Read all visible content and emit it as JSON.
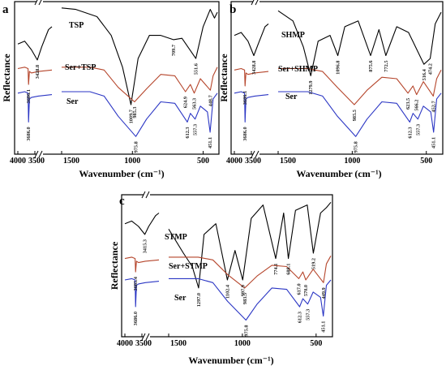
{
  "figure": {
    "panels": [
      "a",
      "b",
      "c"
    ],
    "y_label": "Reflectance",
    "x_label": "Wavenumber (cm⁻¹)",
    "break_mark": "//"
  },
  "colors": {
    "top": "#000000",
    "mid": "#b5452b",
    "ser": "#2b36c4"
  },
  "chart_data": [
    {
      "panel": "a",
      "type": "line",
      "xlabel": "Wavenumber (cm⁻¹)",
      "ylabel": "Reflectance",
      "x_axis_break": [
        1500,
        3500
      ],
      "x_ticks": [
        "4000",
        "3500",
        "1500",
        "1000",
        "500"
      ],
      "series": [
        {
          "name": "TSP",
          "color": "#000000",
          "x": [
            4000,
            3800,
            3600,
            3429,
            3300,
            3100,
            3000,
            1500,
            1400,
            1250,
            1150,
            1070,
            1010,
            960,
            880,
            800,
            710,
            650,
            552,
            500,
            450,
            420,
            400
          ],
          "y": [
            0.74,
            0.76,
            0.7,
            0.63,
            0.72,
            0.84,
            0.86,
            0.99,
            0.98,
            0.93,
            0.8,
            0.58,
            0.32,
            0.64,
            0.8,
            0.8,
            0.77,
            0.78,
            0.64,
            0.86,
            0.98,
            0.92,
            0.96
          ]
        },
        {
          "name": "Ser+TSP",
          "color": "#b5452b",
          "x": [
            4000,
            3800,
            3700,
            3686,
            3660,
            3600,
            3400,
            3000,
            1500,
            1300,
            1200,
            1100,
            985,
            900,
            800,
            700,
            625,
            590,
            563,
            520,
            449,
            430,
            400
          ],
          "y": [
            0.57,
            0.58,
            0.57,
            0.46,
            0.55,
            0.54,
            0.55,
            0.56,
            0.58,
            0.58,
            0.56,
            0.44,
            0.34,
            0.43,
            0.53,
            0.52,
            0.41,
            0.46,
            0.4,
            0.5,
            0.42,
            0.52,
            0.58
          ]
        },
        {
          "name": "Ser",
          "color": "#2b36c4",
          "x": [
            4000,
            3800,
            3700,
            3686,
            3660,
            3600,
            3400,
            3000,
            1500,
            1300,
            1200,
            1100,
            976,
            900,
            800,
            700,
            612,
            590,
            557,
            520,
            470,
            451,
            430,
            400
          ],
          "y": [
            0.4,
            0.41,
            0.4,
            0.2,
            0.36,
            0.37,
            0.38,
            0.39,
            0.41,
            0.41,
            0.38,
            0.24,
            0.1,
            0.22,
            0.34,
            0.33,
            0.2,
            0.26,
            0.22,
            0.31,
            0.27,
            0.13,
            0.36,
            0.4
          ]
        }
      ],
      "annotations": [
        "3428.8",
        "1009.7",
        "709.7",
        "551.6",
        "3686.1",
        "985.3",
        "624.9",
        "563.3",
        "448.7",
        "3686.0",
        "975.8",
        "612.3",
        "557.3",
        "451.1"
      ]
    },
    {
      "panel": "b",
      "type": "line",
      "xlabel": "Wavenumber (cm⁻¹)",
      "ylabel": "Reflectance",
      "x_axis_break": [
        1500,
        3500
      ],
      "x_ticks": [
        "4000",
        "3500",
        "1500",
        "1000",
        "500"
      ],
      "series": [
        {
          "name": "SHMP",
          "color": "#000000",
          "x": [
            4000,
            3800,
            3600,
            3429,
            3300,
            3100,
            3000,
            1500,
            1400,
            1330,
            1280,
            1230,
            1150,
            1097,
            1050,
            960,
            876,
            820,
            773,
            700,
            620,
            516,
            474,
            440,
            400
          ],
          "y": [
            0.8,
            0.82,
            0.76,
            0.66,
            0.74,
            0.86,
            0.88,
            0.97,
            0.9,
            0.72,
            0.52,
            0.76,
            0.8,
            0.66,
            0.86,
            0.9,
            0.66,
            0.84,
            0.66,
            0.86,
            0.82,
            0.6,
            0.64,
            0.88,
            0.96
          ]
        },
        {
          "name": "Ser+SHMP",
          "color": "#b5452b",
          "x": [
            4000,
            3800,
            3700,
            3686,
            3660,
            3600,
            3400,
            3000,
            1500,
            1300,
            1200,
            1100,
            986,
            900,
            800,
            700,
            624,
            590,
            566,
            520,
            453,
            430,
            400
          ],
          "y": [
            0.56,
            0.57,
            0.56,
            0.45,
            0.54,
            0.53,
            0.54,
            0.55,
            0.57,
            0.57,
            0.55,
            0.44,
            0.32,
            0.42,
            0.51,
            0.5,
            0.4,
            0.45,
            0.39,
            0.48,
            0.38,
            0.5,
            0.56
          ]
        },
        {
          "name": "Ser",
          "color": "#2b36c4",
          "x": [
            4000,
            3800,
            3700,
            3686,
            3660,
            3600,
            3400,
            3000,
            1500,
            1300,
            1200,
            1100,
            976,
            900,
            800,
            700,
            612,
            590,
            557,
            520,
            470,
            451,
            430,
            400
          ],
          "y": [
            0.4,
            0.41,
            0.4,
            0.2,
            0.36,
            0.37,
            0.38,
            0.39,
            0.41,
            0.41,
            0.38,
            0.24,
            0.1,
            0.22,
            0.34,
            0.33,
            0.2,
            0.26,
            0.22,
            0.31,
            0.27,
            0.13,
            0.36,
            0.4
          ]
        }
      ],
      "annotations": [
        "3428.8",
        "1279.9",
        "1096.8",
        "875.6",
        "772.5",
        "516.4",
        "474.2",
        "3686.1",
        "985.5",
        "623.5",
        "566.2",
        "452.7",
        "3686.0",
        "975.8",
        "612.3",
        "557.3",
        "451.1"
      ]
    },
    {
      "panel": "c",
      "type": "line",
      "xlabel": "Wavenumber (cm⁻¹)",
      "ylabel": "Reflectance",
      "x_axis_break": [
        1500,
        3500
      ],
      "x_ticks": [
        "4000",
        "3500",
        "1500",
        "1000",
        "500"
      ],
      "series": [
        {
          "name": "STMP",
          "color": "#000000",
          "x": [
            4000,
            3800,
            3600,
            3415,
            3300,
            3100,
            3000,
            1500,
            1400,
            1340,
            1297,
            1260,
            1180,
            1102,
            1050,
            998,
            940,
            860,
            774,
            720,
            688,
            640,
            560,
            519,
            470,
            430,
            400
          ],
          "y": [
            0.82,
            0.84,
            0.8,
            0.74,
            0.8,
            0.88,
            0.9,
            0.78,
            0.6,
            0.5,
            0.34,
            0.74,
            0.82,
            0.4,
            0.62,
            0.4,
            0.86,
            0.96,
            0.56,
            0.9,
            0.56,
            0.92,
            0.96,
            0.6,
            0.9,
            0.94,
            0.98
          ]
        },
        {
          "name": "Ser+STMP",
          "color": "#b5452b",
          "x": [
            4000,
            3800,
            3700,
            3685,
            3660,
            3600,
            3400,
            3000,
            1500,
            1300,
            1200,
            1100,
            984,
            900,
            800,
            700,
            617,
            590,
            570,
            520,
            450,
            430,
            400
          ],
          "y": [
            0.56,
            0.57,
            0.56,
            0.46,
            0.54,
            0.53,
            0.54,
            0.55,
            0.57,
            0.57,
            0.55,
            0.44,
            0.34,
            0.43,
            0.51,
            0.5,
            0.41,
            0.46,
            0.4,
            0.48,
            0.38,
            0.52,
            0.58
          ]
        },
        {
          "name": "Ser",
          "color": "#2b36c4",
          "x": [
            4000,
            3800,
            3700,
            3686,
            3660,
            3600,
            3400,
            3000,
            1500,
            1300,
            1200,
            1100,
            976,
            900,
            800,
            700,
            612,
            590,
            557,
            520,
            470,
            451,
            430,
            400
          ],
          "y": [
            0.4,
            0.41,
            0.4,
            0.2,
            0.36,
            0.37,
            0.38,
            0.39,
            0.41,
            0.41,
            0.38,
            0.24,
            0.1,
            0.22,
            0.34,
            0.33,
            0.2,
            0.26,
            0.22,
            0.31,
            0.27,
            0.13,
            0.36,
            0.4
          ]
        }
      ],
      "annotations": [
        "3415.3",
        "1297.0",
        "1102.4",
        "997.9",
        "774.1",
        "688.1",
        "519.2",
        "3685.4",
        "983.5",
        "617.0",
        "570.0",
        "449.9",
        "3686.0",
        "975.8",
        "612.3",
        "557.3",
        "451.1"
      ]
    }
  ]
}
